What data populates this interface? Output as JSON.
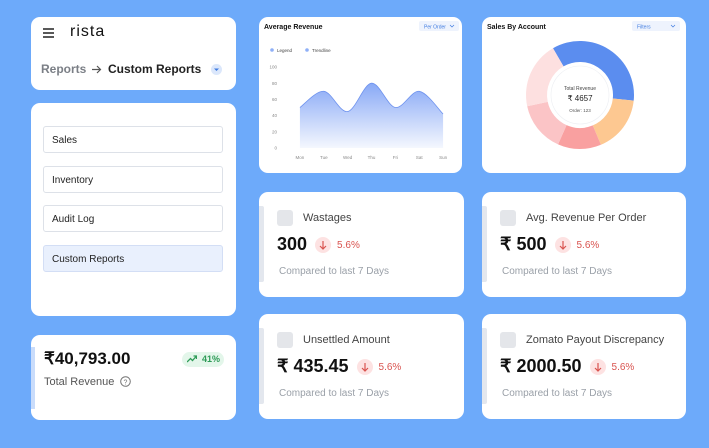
{
  "header": {
    "logo": "rista",
    "breadcrumb": [
      "Reports",
      "Custom Reports"
    ]
  },
  "menu": [
    "Sales",
    "Inventory",
    "Audit Log",
    "Custom Reports"
  ],
  "revenue_card": {
    "amount": "₹40,793.00",
    "change": "41%",
    "label": "Total Revenue"
  },
  "chart_data": [
    {
      "type": "area",
      "title": "Average Revenue",
      "dropdown": "Per Order",
      "legend": [
        "Legend",
        "Trendline"
      ],
      "categories": [
        "Mon",
        "Tue",
        "Wed",
        "Thu",
        "Fri",
        "Sat",
        "Sun"
      ],
      "values": [
        50,
        70,
        45,
        80,
        50,
        70,
        42
      ],
      "color": "#7b9ff5",
      "ylim": [
        0,
        100
      ],
      "yticks": [
        0,
        20,
        40,
        60,
        80,
        100
      ],
      "grid": false
    },
    {
      "type": "pie",
      "title": "Sales By Account",
      "dropdown": "Filters",
      "center": [
        "Total Revenue",
        "₹ 4657",
        "Order: 123"
      ],
      "categories": [
        null,
        null,
        null,
        null,
        null
      ],
      "values": [
        35,
        17,
        13,
        15,
        20
      ],
      "colors": [
        "#5b8def",
        "#fdc891",
        "#f9a0a0",
        "#fbc4c6",
        "#fde0e0"
      ]
    }
  ],
  "kpis": [
    {
      "title": "Wastages",
      "value": "300",
      "change": "5.6%",
      "note": "Compared to last 7 Days"
    },
    {
      "title": "Avg. Revenue Per Order",
      "value": "₹ 500",
      "change": "5.6%",
      "note": "Compared to last 7 Days"
    },
    {
      "title": "Unsettled Amount",
      "value": "₹ 435.45",
      "change": "5.6%",
      "note": "Compared to last 7 Days"
    },
    {
      "title": "Zomato Payout Discrepancy",
      "value": "₹ 2000.50",
      "change": "5.6%",
      "note": "Compared to last 7 Days"
    }
  ]
}
